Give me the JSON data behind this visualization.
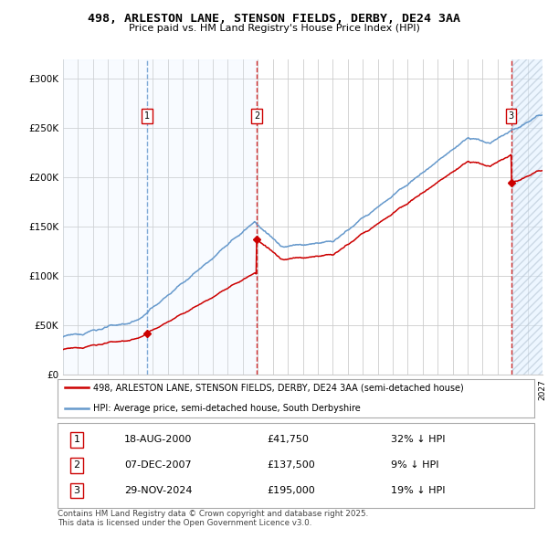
{
  "title1": "498, ARLESTON LANE, STENSON FIELDS, DERBY, DE24 3AA",
  "title2": "Price paid vs. HM Land Registry's House Price Index (HPI)",
  "ylim": [
    0,
    320000
  ],
  "yticks": [
    0,
    50000,
    100000,
    150000,
    200000,
    250000,
    300000
  ],
  "ytick_labels": [
    "£0",
    "£50K",
    "£100K",
    "£150K",
    "£200K",
    "£250K",
    "£300K"
  ],
  "sale_dates_num": [
    2000.62,
    2007.92,
    2024.91
  ],
  "sale_prices": [
    41750,
    137500,
    195000
  ],
  "sale_labels": [
    "1",
    "2",
    "3"
  ],
  "legend_red": "498, ARLESTON LANE, STENSON FIELDS, DERBY, DE24 3AA (semi-detached house)",
  "legend_blue": "HPI: Average price, semi-detached house, South Derbyshire",
  "table_data": [
    [
      "1",
      "18-AUG-2000",
      "£41,750",
      "32% ↓ HPI"
    ],
    [
      "2",
      "07-DEC-2007",
      "£137,500",
      "9% ↓ HPI"
    ],
    [
      "3",
      "29-NOV-2024",
      "£195,000",
      "19% ↓ HPI"
    ]
  ],
  "footer": "Contains HM Land Registry data © Crown copyright and database right 2025.\nThis data is licensed under the Open Government Licence v3.0.",
  "red_color": "#cc0000",
  "blue_color": "#6699cc",
  "shade1_color": "#ddeeff",
  "bg_color": "#ffffff",
  "grid_color": "#cccccc",
  "xmin": 1995,
  "xmax": 2027
}
